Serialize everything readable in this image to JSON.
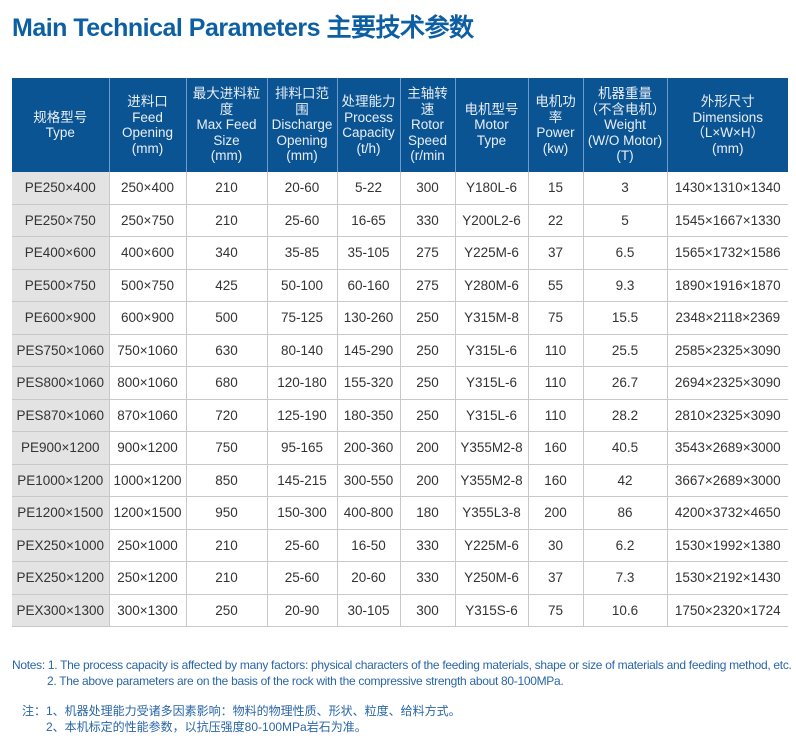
{
  "title": "Main Technical Parameters 主要技术参数",
  "headers": [
    [
      "规格型号",
      "Type"
    ],
    [
      "进料口",
      "Feed",
      "Opening",
      "(mm)"
    ],
    [
      "最大进料粒度",
      "Max Feed",
      "Size",
      "(mm)"
    ],
    [
      "排料口范围",
      "Discharge",
      "Opening",
      "(mm)"
    ],
    [
      "处理能力",
      "Process",
      "Capacity",
      "(t/h)"
    ],
    [
      "主轴转速",
      "Rotor",
      "Speed",
      "(r/min"
    ],
    [
      "电机型号",
      "Motor",
      "Type"
    ],
    [
      "电机功率",
      "Power",
      "(kw)"
    ],
    [
      "机器重量",
      "（不含电机）",
      "Weight",
      "(W/O Motor)",
      "(T)"
    ],
    [
      "外形尺寸",
      "Dimensions",
      "（L×W×H）",
      "(mm)"
    ]
  ],
  "rows": [
    [
      "PE250×400",
      "250×400",
      "210",
      "20-60",
      "5-22",
      "300",
      "Y180L-6",
      "15",
      "3",
      "1430×1310×1340"
    ],
    [
      "PE250×750",
      "250×750",
      "210",
      "25-60",
      "16-65",
      "330",
      "Y200L2-6",
      "22",
      "5",
      "1545×1667×1330"
    ],
    [
      "PE400×600",
      "400×600",
      "340",
      "35-85",
      "35-105",
      "275",
      "Y225M-6",
      "37",
      "6.5",
      "1565×1732×1586"
    ],
    [
      "PE500×750",
      "500×750",
      "425",
      "50-100",
      "60-160",
      "275",
      "Y280M-6",
      "55",
      "9.3",
      "1890×1916×1870"
    ],
    [
      "PE600×900",
      "600×900",
      "500",
      "75-125",
      "130-260",
      "250",
      "Y315M-8",
      "75",
      "15.5",
      "2348×2118×2369"
    ],
    [
      "PES750×1060",
      "750×1060",
      "630",
      "80-140",
      "145-290",
      "250",
      "Y315L-6",
      "110",
      "25.5",
      "2585×2325×3090"
    ],
    [
      "PES800×1060",
      "800×1060",
      "680",
      "120-180",
      "155-320",
      "250",
      "Y315L-6",
      "110",
      "26.7",
      "2694×2325×3090"
    ],
    [
      "PES870×1060",
      "870×1060",
      "720",
      "125-190",
      "180-350",
      "250",
      "Y315L-6",
      "110",
      "28.2",
      "2810×2325×3090"
    ],
    [
      "PE900×1200",
      "900×1200",
      "750",
      "95-165",
      "200-360",
      "200",
      "Y355M2-8",
      "160",
      "40.5",
      "3543×2689×3000"
    ],
    [
      "PE1000×1200",
      "1000×1200",
      "850",
      "145-215",
      "300-550",
      "200",
      "Y355M2-8",
      "160",
      "42",
      "3667×2689×3000"
    ],
    [
      "PE1200×1500",
      "1200×1500",
      "950",
      "150-300",
      "400-800",
      "180",
      "Y355L3-8",
      "200",
      "86",
      "4200×3732×4650"
    ],
    [
      "PEX250×1000",
      "250×1000",
      "210",
      "25-60",
      "16-50",
      "330",
      "Y225M-6",
      "30",
      "6.2",
      "1530×1992×1380"
    ],
    [
      "PEX250×1200",
      "250×1200",
      "210",
      "25-60",
      "20-60",
      "330",
      "Y250M-6",
      "37",
      "7.3",
      "1530×2192×1430"
    ],
    [
      "PEX300×1300",
      "300×1300",
      "250",
      "20-90",
      "30-105",
      "300",
      "Y315S-6",
      "75",
      "10.6",
      "1750×2320×1724"
    ]
  ],
  "notes_en": [
    "Notes: 1. The process capacity is affected by many factors: physical characters of the feeding materials, shape or size of materials and feeding method, etc.",
    "2. The above parameters are on the basis of the rock with the compressive strength about 80-100MPa."
  ],
  "notes_cn": [
    "注：1、机器处理能力受诸多因素影响：物料的物理性质、形状、粒度、给料方式。",
    "2、本机标定的性能参数，以抗压强度80-100MPa岩石为准。"
  ],
  "colors": {
    "header": "#0b5493",
    "title": "#0d5fa3",
    "notes": "#2a66a8"
  }
}
